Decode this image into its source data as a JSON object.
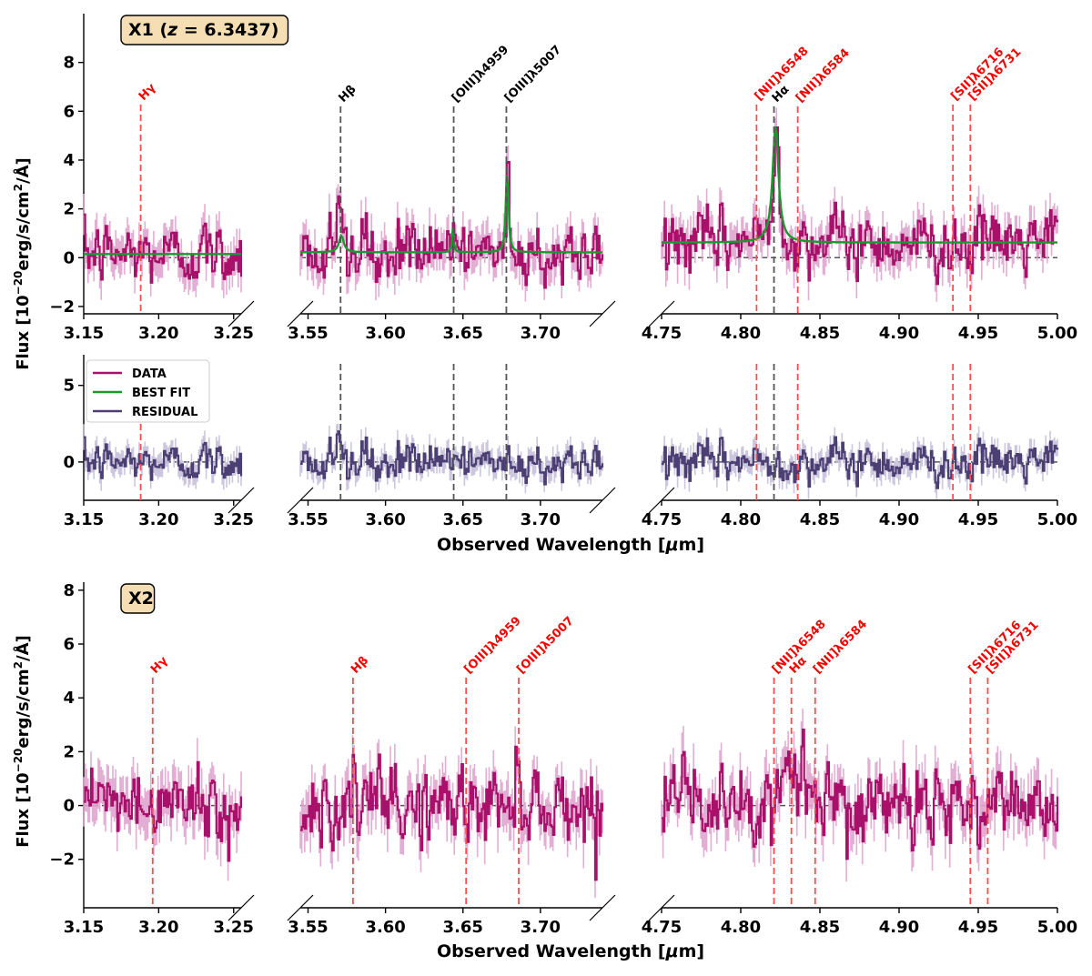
{
  "chart_data": {
    "type": "line",
    "figure": {
      "ylabel_flux": "Flux [10$^{-20}$erg/s/cm$^2$/Å]",
      "ylabel_flux_parts": [
        "Flux [10",
        "−20",
        "erg/s/cm",
        "2",
        "/Å]"
      ],
      "xlabel": "Observed Wavelength [μm]",
      "xlabel_parts": [
        "Observed Wavelength [",
        "μ",
        "m]"
      ],
      "x_segments": [
        {
          "xlim": [
            3.15,
            3.255
          ],
          "ticks": [
            3.15,
            3.2,
            3.25
          ],
          "tick_labels": [
            "3.15",
            "3.20",
            "3.25"
          ]
        },
        {
          "xlim": [
            3.545,
            3.74
          ],
          "ticks": [
            3.55,
            3.6,
            3.65,
            3.7
          ],
          "tick_labels": [
            "3.55",
            "3.60",
            "3.65",
            "3.70"
          ]
        },
        {
          "xlim": [
            4.75,
            5.0
          ],
          "ticks": [
            4.75,
            4.8,
            4.85,
            4.9,
            4.95,
            5.0
          ],
          "tick_labels": [
            "4.75",
            "4.80",
            "4.85",
            "4.90",
            "4.95",
            "5.00"
          ]
        }
      ],
      "colors": {
        "data": "#a8106a",
        "data_err": "#e0a5cf",
        "best_fit": "#1a9a2e",
        "residual": "#4b3f73",
        "residual_err": "#c6c1dc",
        "detected_line": "#555555",
        "undetected_line": "#ff4d4d",
        "label_box": "#f5deb3"
      }
    },
    "panels": [
      {
        "id": "x1-flux",
        "badge": {
          "prefix": "X1 (",
          "var": "z",
          "rest": " = 6.3437)"
        },
        "ylim": [
          -2.3,
          10
        ],
        "yticks": [
          -2,
          0,
          2,
          4,
          6,
          8
        ],
        "series": [
          {
            "name": "DATA",
            "role": "data",
            "baseline": [
              0.1,
              0.2,
              0.6
            ],
            "noise": 0.65
          },
          {
            "name": "BEST FIT",
            "role": "model",
            "continuum": [
              0.15,
              0.22,
              0.62
            ],
            "peaks": [
              {
                "x": 3.5715,
                "amp": 0.7,
                "w": 0.0018
              },
              {
                "x": 3.6435,
                "amp": 1.0,
                "w": 0.0006
              },
              {
                "x": 3.6785,
                "amp": 3.7,
                "w": 0.0009
              },
              {
                "x": 4.822,
                "amp": 4.85,
                "w": 0.0022
              }
            ]
          }
        ],
        "lines": [
          {
            "label": "Hγ",
            "x": 3.188,
            "detected": false
          },
          {
            "label": "Hβ",
            "x": 3.571,
            "detected": true
          },
          {
            "label": "[OIII]λ4959",
            "x": 3.644,
            "detected": true
          },
          {
            "label": "[OIII]λ5007",
            "x": 3.678,
            "detected": true
          },
          {
            "label": "[NII]λ6548",
            "x": 4.81,
            "detected": false
          },
          {
            "label": "Hα",
            "x": 4.821,
            "detected": true
          },
          {
            "label": "[NII]λ6584",
            "x": 4.836,
            "detected": false
          },
          {
            "label": "[SII]λ6716",
            "x": 4.934,
            "detected": false
          },
          {
            "label": "[SII]λ6731",
            "x": 4.945,
            "detected": false
          }
        ]
      },
      {
        "id": "x1-residual",
        "ylim": [
          -2.5,
          7
        ],
        "yticks": [
          0,
          5
        ],
        "legend": {
          "placement": "upper-left",
          "entries": [
            "DATA",
            "BEST FIT",
            "RESIDUAL"
          ]
        },
        "series": [
          {
            "name": "RESIDUAL",
            "role": "residual",
            "baseline": [
              0,
              0,
              0
            ],
            "noise": 0.5
          }
        ]
      },
      {
        "id": "x2-flux",
        "badge": {
          "prefix": "X2",
          "var": "",
          "rest": ""
        },
        "ylim": [
          -3.8,
          8.3
        ],
        "yticks": [
          -2,
          0,
          2,
          4,
          6,
          8
        ],
        "series": [
          {
            "name": "DATA",
            "role": "data",
            "baseline": [
              0,
              0,
              0
            ],
            "noise": 0.75,
            "peaks": [
              {
                "x": 3.686,
                "amp": 1.8,
                "w": 0.0015
              },
              {
                "x": 4.829,
                "amp": 1.6,
                "w": 0.003
              },
              {
                "x": 4.839,
                "amp": 2.4,
                "w": 0.0015
              }
            ]
          }
        ],
        "lines": [
          {
            "label": "Hγ",
            "x": 3.196,
            "detected": false
          },
          {
            "label": "Hβ",
            "x": 3.579,
            "detected": false
          },
          {
            "label": "[OIII]λ4959",
            "x": 3.652,
            "detected": false
          },
          {
            "label": "[OIII]λ5007",
            "x": 3.686,
            "detected": false
          },
          {
            "label": "[NII]λ6548",
            "x": 4.821,
            "detected": false
          },
          {
            "label": "Hα",
            "x": 4.832,
            "detected": false
          },
          {
            "label": "[NII]λ6584",
            "x": 4.847,
            "detected": false
          },
          {
            "label": "[SII]λ6716",
            "x": 4.945,
            "detected": false
          },
          {
            "label": "[SII]λ6731",
            "x": 4.956,
            "detected": false
          }
        ]
      }
    ]
  }
}
